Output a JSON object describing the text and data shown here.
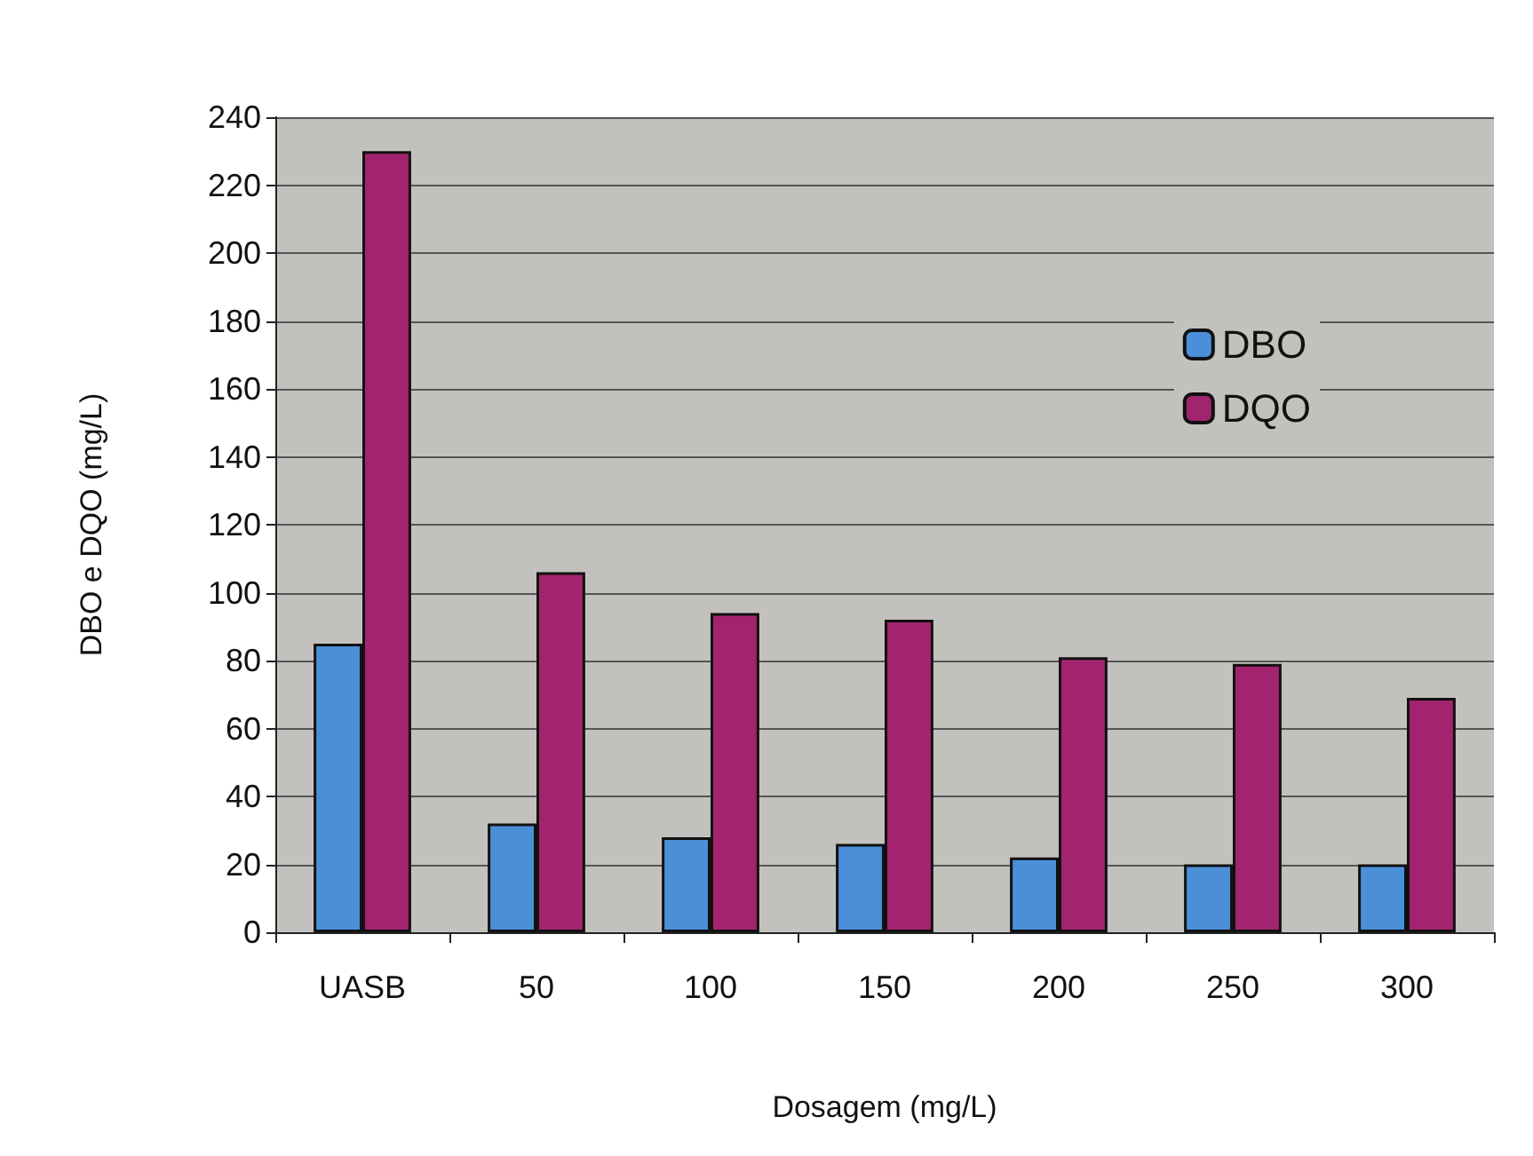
{
  "chart_data": {
    "type": "bar",
    "xlabel": "Dosagem (mg/L)",
    "ylabel": "DBO e DQO (mg/L)",
    "categories": [
      "UASB",
      "50",
      "100",
      "150",
      "200",
      "250",
      "300"
    ],
    "series": [
      {
        "name": "DBO",
        "color": "#4b8fd8",
        "values": [
          85,
          32,
          28,
          26,
          22,
          20,
          20
        ]
      },
      {
        "name": "DQO",
        "color": "#a3246e",
        "values": [
          230,
          106,
          94,
          92,
          81,
          79,
          69
        ]
      }
    ],
    "ylim": [
      0,
      240
    ],
    "yticks": [
      0,
      20,
      40,
      60,
      80,
      100,
      120,
      140,
      160,
      180,
      200,
      220,
      240
    ],
    "grid": "y",
    "legend": "top right"
  }
}
